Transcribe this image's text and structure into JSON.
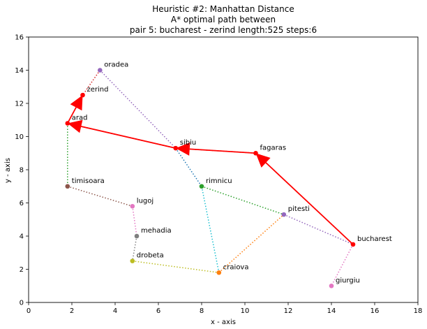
{
  "figure": {
    "title_line1": "Heuristic #2: Manhattan Distance",
    "title_line2": "A* optimal path between",
    "title_line3": "pair 5: bucharest - zerind length:525 steps:6"
  },
  "chart_data": {
    "type": "scatter",
    "title": "Heuristic #2: Manhattan Distance\nA* optimal path between\npair 5: bucharest - zerind length:525 steps:6",
    "xlabel": "x - axis",
    "ylabel": "y - axis",
    "xlim": [
      0,
      18
    ],
    "ylim": [
      0,
      16
    ],
    "xticks": [
      "0",
      "2",
      "4",
      "6",
      "8",
      "10",
      "12",
      "14",
      "16",
      "18"
    ],
    "yticks": [
      "0",
      "2",
      "4",
      "6",
      "8",
      "10",
      "12",
      "14",
      "16"
    ],
    "grid": false,
    "nodes": [
      {
        "name": "oradea",
        "x": 3.3,
        "y": 14.0,
        "color": "#9467bd"
      },
      {
        "name": "zerind",
        "x": 2.5,
        "y": 12.5,
        "color": "#d62728"
      },
      {
        "name": "arad",
        "x": 1.8,
        "y": 10.8,
        "color": "#d62728"
      },
      {
        "name": "sibiu",
        "x": 6.8,
        "y": 9.3,
        "color": "#d62728"
      },
      {
        "name": "fagaras",
        "x": 10.5,
        "y": 9.0,
        "color": "#d62728"
      },
      {
        "name": "timisoara",
        "x": 1.8,
        "y": 7.0,
        "color": "#8c564b"
      },
      {
        "name": "rimnicu",
        "x": 8.0,
        "y": 7.0,
        "color": "#2ca02c"
      },
      {
        "name": "lugoj",
        "x": 4.8,
        "y": 5.8,
        "color": "#e377c2"
      },
      {
        "name": "pitesti",
        "x": 11.8,
        "y": 5.3,
        "color": "#9467bd"
      },
      {
        "name": "mehadia",
        "x": 5.0,
        "y": 4.0,
        "color": "#7f7f7f"
      },
      {
        "name": "bucharest",
        "x": 15.0,
        "y": 3.5,
        "color": "#d62728"
      },
      {
        "name": "drobeta",
        "x": 4.8,
        "y": 2.5,
        "color": "#bcbd22"
      },
      {
        "name": "craiova",
        "x": 8.8,
        "y": 1.8,
        "color": "#ff7f0e"
      },
      {
        "name": "giurgiu",
        "x": 14.0,
        "y": 1.0,
        "color": "#e377c2"
      }
    ],
    "edges": [
      {
        "from": "oradea",
        "to": "zerind",
        "color": "#d62728"
      },
      {
        "from": "oradea",
        "to": "sibiu",
        "color": "#9467bd"
      },
      {
        "from": "zerind",
        "to": "arad",
        "color": "#d62728"
      },
      {
        "from": "arad",
        "to": "sibiu",
        "color": "#d62728"
      },
      {
        "from": "arad",
        "to": "timisoara",
        "color": "#2ca02c"
      },
      {
        "from": "timisoara",
        "to": "lugoj",
        "color": "#8c564b"
      },
      {
        "from": "lugoj",
        "to": "mehadia",
        "color": "#e377c2"
      },
      {
        "from": "mehadia",
        "to": "drobeta",
        "color": "#7f7f7f"
      },
      {
        "from": "drobeta",
        "to": "craiova",
        "color": "#bcbd22"
      },
      {
        "from": "craiova",
        "to": "pitesti",
        "color": "#ff7f0e"
      },
      {
        "from": "craiova",
        "to": "rimnicu",
        "color": "#17becf"
      },
      {
        "from": "sibiu",
        "to": "rimnicu",
        "color": "#1f77b4"
      },
      {
        "from": "sibiu",
        "to": "fagaras",
        "color": "#d62728"
      },
      {
        "from": "rimnicu",
        "to": "pitesti",
        "color": "#2ca02c"
      },
      {
        "from": "pitesti",
        "to": "bucharest",
        "color": "#9467bd"
      },
      {
        "from": "fagaras",
        "to": "bucharest",
        "color": "#d62728"
      },
      {
        "from": "bucharest",
        "to": "giurgiu",
        "color": "#e377c2"
      }
    ],
    "path": [
      "bucharest",
      "fagaras",
      "sibiu",
      "arad",
      "zerind"
    ],
    "path_color": "#ff0000",
    "length": 525,
    "steps": 6
  }
}
